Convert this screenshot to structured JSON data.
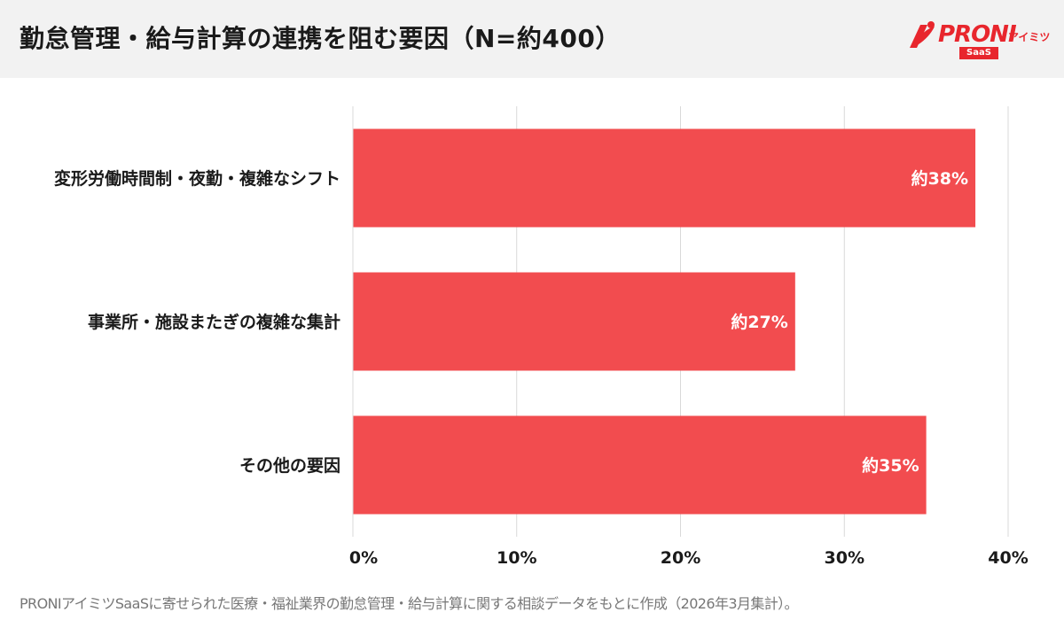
{
  "header": {
    "title": "勤怠管理・給与計算の連携を阻む要因（N=約400）",
    "logo": {
      "wordmark": "PRONI",
      "kana": "アイミツ",
      "badge": "SaaS"
    }
  },
  "footnote": "PRONIアイミツSaaSに寄せられた医療・福祉業界の勤怠管理・給与計算に関する相談データをもとに作成（2026年3月集計）。",
  "colors": {
    "bar": "#f24c4f",
    "brand": "#e8262d",
    "grid": "#d9d9d9",
    "header_bg": "#f2f2f2"
  },
  "chart_data": {
    "type": "bar",
    "orientation": "horizontal",
    "title": "勤怠管理・給与計算の連携を阻む要因（N=約400）",
    "categories": [
      "変形労働時間制・夜勤・複雑なシフト",
      "事業所・施設またぎの複雑な集計",
      "その他の要因"
    ],
    "values": [
      38,
      27,
      35
    ],
    "data_labels": [
      "約38%",
      "約27%",
      "約35%"
    ],
    "xlim": [
      0,
      40
    ],
    "x_ticks": [
      0,
      10,
      20,
      30,
      40
    ],
    "x_tick_labels": [
      "0%",
      "10%",
      "20%",
      "30%",
      "40%"
    ],
    "grid": true,
    "legend": "none"
  }
}
